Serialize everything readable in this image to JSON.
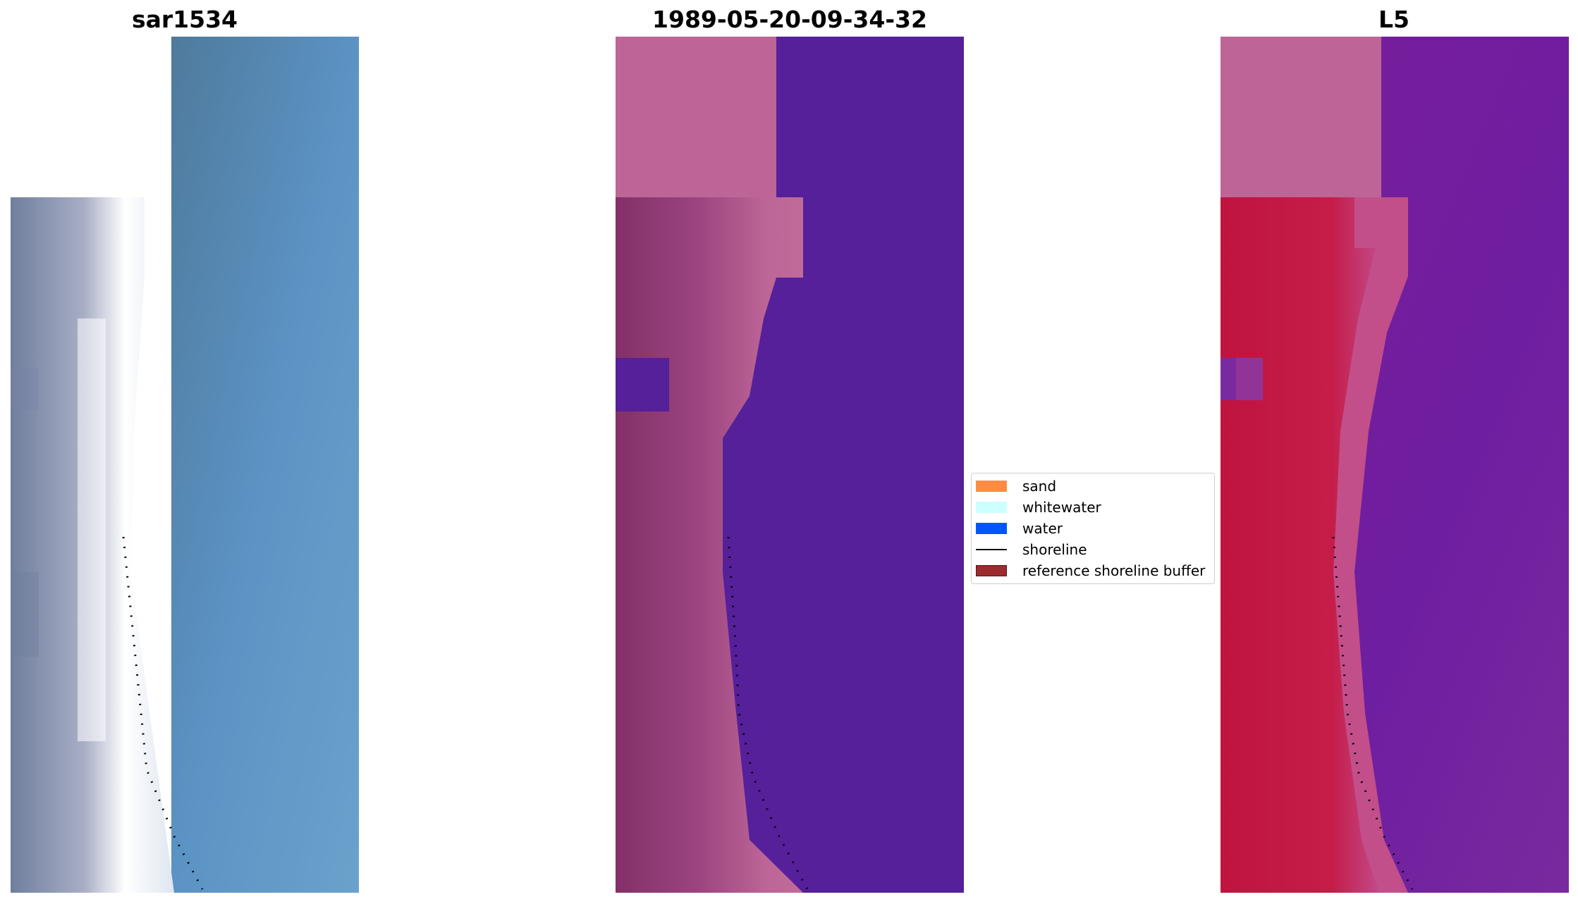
{
  "panels": [
    {
      "title": "sar1534"
    },
    {
      "title": "1989-05-20-09-34-32"
    },
    {
      "title": "L5"
    }
  ],
  "legend": {
    "items": [
      {
        "label": "sand",
        "color": "#ff8c42",
        "kind": "patch"
      },
      {
        "label": "whitewater",
        "color": "#ccffff",
        "kind": "patch"
      },
      {
        "label": "water",
        "color": "#0055ff",
        "kind": "patch"
      },
      {
        "label": "shoreline",
        "color": "#000000",
        "kind": "line"
      },
      {
        "label": "reference shoreline buffer",
        "color": "#9b2b2d",
        "kind": "patch"
      }
    ]
  },
  "colors": {
    "rgb_water": "#5b93c4",
    "rgb_beach": "#eef0f6",
    "classified_water": "#55209a",
    "classified_sand": "#bd6597",
    "classified_dark": "#833068",
    "index_water": "#6e1ea0",
    "index_land": "#c01440"
  }
}
